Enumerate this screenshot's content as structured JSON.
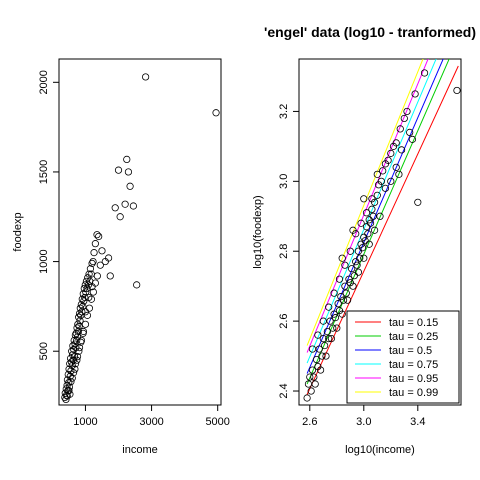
{
  "figure": {
    "title": "'engel' data (log10 - tranformed)"
  },
  "chart_data": [
    {
      "type": "scatter",
      "xlabel": "income",
      "ylabel": "foodexp",
      "xlim": [
        200,
        5100
      ],
      "ylim": [
        200,
        2130
      ],
      "xticks": [
        1000,
        3000,
        5000
      ],
      "yticks": [
        500,
        1000,
        1500,
        2000
      ],
      "points": [
        [
          377,
          242
        ],
        [
          390,
          266
        ],
        [
          410,
          231
        ],
        [
          420,
          290
        ],
        [
          430,
          255
        ],
        [
          445,
          310
        ],
        [
          455,
          340
        ],
        [
          470,
          280
        ],
        [
          480,
          370
        ],
        [
          495,
          325
        ],
        [
          505,
          400
        ],
        [
          515,
          300
        ],
        [
          525,
          430
        ],
        [
          540,
          360
        ],
        [
          550,
          460
        ],
        [
          560,
          390
        ],
        [
          575,
          440
        ],
        [
          585,
          500
        ],
        [
          600,
          420
        ],
        [
          610,
          480
        ],
        [
          620,
          530
        ],
        [
          635,
          450
        ],
        [
          645,
          510
        ],
        [
          660,
          560
        ],
        [
          670,
          470
        ],
        [
          685,
          540
        ],
        [
          695,
          590
        ],
        [
          710,
          520
        ],
        [
          720,
          600
        ],
        [
          735,
          560
        ],
        [
          745,
          630
        ],
        [
          760,
          580
        ],
        [
          770,
          650
        ],
        [
          785,
          610
        ],
        [
          795,
          690
        ],
        [
          810,
          640
        ],
        [
          820,
          710
        ],
        [
          835,
          670
        ],
        [
          845,
          740
        ],
        [
          860,
          700
        ],
        [
          875,
          760
        ],
        [
          890,
          720
        ],
        [
          905,
          790
        ],
        [
          920,
          750
        ],
        [
          935,
          820
        ],
        [
          950,
          780
        ],
        [
          965,
          850
        ],
        [
          980,
          800
        ],
        [
          995,
          870
        ],
        [
          1010,
          830
        ],
        [
          1030,
          890
        ],
        [
          1050,
          850
        ],
        [
          1070,
          910
        ],
        [
          1090,
          870
        ],
        [
          1110,
          930
        ],
        [
          1130,
          890
        ],
        [
          1150,
          960
        ],
        [
          1175,
          930
        ],
        [
          1200,
          990
        ],
        [
          1230,
          1000
        ],
        [
          1260,
          1050
        ],
        [
          1300,
          1100
        ],
        [
          1350,
          1150
        ],
        [
          1400,
          1140
        ],
        [
          1450,
          980
        ],
        [
          1500,
          1060
        ],
        [
          1600,
          1000
        ],
        [
          1700,
          1020
        ],
        [
          1750,
          920
        ],
        [
          1900,
          1300
        ],
        [
          2000,
          1510
        ],
        [
          2050,
          1250
        ],
        [
          2200,
          1320
        ],
        [
          2250,
          1570
        ],
        [
          2300,
          1500
        ],
        [
          2350,
          1420
        ],
        [
          2450,
          1310
        ],
        [
          2550,
          870
        ],
        [
          2820,
          2030
        ],
        [
          4950,
          1830
        ],
        [
          560,
          330
        ],
        [
          640,
          380
        ],
        [
          700,
          430
        ],
        [
          760,
          470
        ],
        [
          820,
          520
        ],
        [
          880,
          560
        ],
        [
          940,
          610
        ],
        [
          1000,
          650
        ],
        [
          1060,
          700
        ],
        [
          1120,
          740
        ],
        [
          1180,
          790
        ],
        [
          1240,
          830
        ],
        [
          1300,
          880
        ],
        [
          1360,
          920
        ],
        [
          450,
          250
        ],
        [
          500,
          280
        ],
        [
          530,
          260
        ],
        [
          600,
          350
        ],
        [
          680,
          400
        ],
        [
          740,
          450
        ],
        [
          800,
          500
        ],
        [
          860,
          550
        ],
        [
          930,
          600
        ],
        [
          1000,
          720
        ],
        [
          1100,
          800
        ],
        [
          1200,
          860
        ]
      ]
    },
    {
      "type": "scatter",
      "xlabel": "log10(income)",
      "ylabel": "log10(foodexp)",
      "xlim": [
        2.52,
        3.72
      ],
      "ylim": [
        2.36,
        3.35
      ],
      "xticks": [
        2.6,
        3.0,
        3.4
      ],
      "yticks": [
        2.4,
        2.6,
        2.8,
        3.0,
        3.2
      ],
      "points": [
        [
          2.58,
          2.38
        ],
        [
          2.59,
          2.42
        ],
        [
          2.61,
          2.4
        ],
        [
          2.62,
          2.46
        ],
        [
          2.63,
          2.44
        ],
        [
          2.65,
          2.49
        ],
        [
          2.66,
          2.47
        ],
        [
          2.67,
          2.52
        ],
        [
          2.69,
          2.5
        ],
        [
          2.7,
          2.55
        ],
        [
          2.71,
          2.53
        ],
        [
          2.73,
          2.57
        ],
        [
          2.74,
          2.55
        ],
        [
          2.75,
          2.6
        ],
        [
          2.77,
          2.58
        ],
        [
          2.78,
          2.62
        ],
        [
          2.79,
          2.61
        ],
        [
          2.81,
          2.65
        ],
        [
          2.82,
          2.63
        ],
        [
          2.83,
          2.67
        ],
        [
          2.85,
          2.66
        ],
        [
          2.86,
          2.7
        ],
        [
          2.87,
          2.68
        ],
        [
          2.89,
          2.72
        ],
        [
          2.9,
          2.71
        ],
        [
          2.91,
          2.75
        ],
        [
          2.93,
          2.73
        ],
        [
          2.94,
          2.77
        ],
        [
          2.95,
          2.76
        ],
        [
          2.96,
          2.8
        ],
        [
          2.97,
          2.78
        ],
        [
          2.98,
          2.82
        ],
        [
          2.99,
          2.81
        ],
        [
          3.0,
          2.84
        ],
        [
          3.01,
          2.83
        ],
        [
          3.02,
          2.87
        ],
        [
          3.03,
          2.85
        ],
        [
          3.04,
          2.89
        ],
        [
          3.05,
          2.88
        ],
        [
          3.06,
          2.92
        ],
        [
          3.07,
          2.9
        ],
        [
          3.08,
          2.94
        ],
        [
          3.1,
          2.96
        ],
        [
          3.11,
          2.99
        ],
        [
          3.13,
          3.0
        ],
        [
          3.14,
          3.03
        ],
        [
          3.16,
          3.05
        ],
        [
          3.18,
          3.06
        ],
        [
          3.2,
          3.08
        ],
        [
          3.22,
          3.1
        ],
        [
          3.24,
          3.11
        ],
        [
          3.27,
          3.15
        ],
        [
          3.3,
          3.18
        ],
        [
          3.32,
          3.2
        ],
        [
          3.34,
          3.14
        ],
        [
          3.36,
          3.12
        ],
        [
          3.38,
          3.25
        ],
        [
          3.4,
          2.94
        ],
        [
          3.45,
          3.31
        ],
        [
          3.69,
          3.26
        ],
        [
          2.62,
          2.52
        ],
        [
          2.66,
          2.56
        ],
        [
          2.7,
          2.6
        ],
        [
          2.74,
          2.64
        ],
        [
          2.78,
          2.68
        ],
        [
          2.82,
          2.72
        ],
        [
          2.86,
          2.76
        ],
        [
          2.9,
          2.8
        ],
        [
          2.94,
          2.85
        ],
        [
          2.98,
          2.88
        ],
        [
          3.02,
          2.91
        ],
        [
          3.06,
          2.95
        ],
        [
          2.64,
          2.42
        ],
        [
          2.68,
          2.46
        ],
        [
          2.72,
          2.5
        ],
        [
          2.76,
          2.55
        ],
        [
          2.8,
          2.58
        ],
        [
          2.84,
          2.62
        ],
        [
          2.88,
          2.66
        ],
        [
          2.92,
          2.7
        ],
        [
          2.96,
          2.74
        ],
        [
          3.0,
          2.78
        ],
        [
          3.04,
          2.82
        ],
        [
          3.08,
          2.86
        ],
        [
          3.12,
          2.9
        ],
        [
          3.16,
          2.98
        ],
        [
          3.2,
          3.0
        ],
        [
          3.24,
          3.04
        ],
        [
          2.6,
          2.44
        ],
        [
          2.84,
          2.78
        ],
        [
          2.92,
          2.86
        ],
        [
          3.0,
          2.95
        ],
        [
          3.1,
          3.02
        ],
        [
          3.26,
          3.02
        ],
        [
          3.28,
          3.09
        ]
      ],
      "legend_position": "bottom-right",
      "series": [
        {
          "name": "tau =  0.15",
          "color": "#ff0000",
          "line": [
            [
              2.58,
              2.39
            ],
            [
              3.7,
              3.33
            ]
          ]
        },
        {
          "name": "tau =  0.25",
          "color": "#00cd00",
          "line": [
            [
              2.58,
              2.42
            ],
            [
              3.7,
              3.41
            ]
          ]
        },
        {
          "name": "tau =  0.5",
          "color": "#0000ff",
          "line": [
            [
              2.58,
              2.45
            ],
            [
              3.7,
              3.45
            ]
          ]
        },
        {
          "name": "tau =  0.75",
          "color": "#00ffff",
          "line": [
            [
              2.58,
              2.48
            ],
            [
              3.7,
              3.5
            ]
          ]
        },
        {
          "name": "tau =  0.95",
          "color": "#ff00ff",
          "line": [
            [
              2.58,
              2.51
            ],
            [
              3.7,
              3.56
            ]
          ]
        },
        {
          "name": "tau =  0.99",
          "color": "#ffff00",
          "line": [
            [
              2.58,
              2.53
            ],
            [
              3.7,
              3.6
            ]
          ]
        }
      ]
    }
  ]
}
